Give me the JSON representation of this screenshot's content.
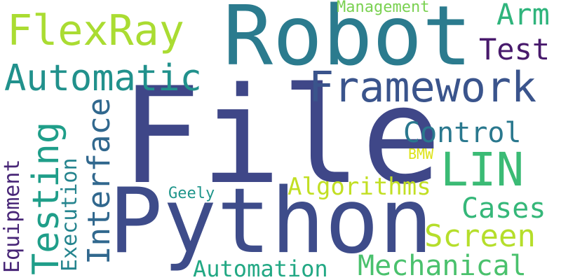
{
  "word_cloud": {
    "words": [
      {
        "id": "file",
        "text": "File",
        "color": "#3f4788"
      },
      {
        "id": "python",
        "text": "Python",
        "color": "#3e4c8a"
      },
      {
        "id": "robot",
        "text": "Robot",
        "color": "#2b7b8e"
      },
      {
        "id": "framework",
        "text": "Framework",
        "color": "#3a548c"
      },
      {
        "id": "flexray",
        "text": "FlexRay",
        "color": "#aadc32"
      },
      {
        "id": "automatic",
        "text": "Automatic",
        "color": "#21918c"
      },
      {
        "id": "lin",
        "text": "LIN",
        "color": "#3bbb75"
      },
      {
        "id": "testing",
        "text": "Testing",
        "color": "#1f9e89"
      },
      {
        "id": "interface",
        "text": "Interface",
        "color": "#31688e"
      },
      {
        "id": "control",
        "text": "Control",
        "color": "#2a788e"
      },
      {
        "id": "arm",
        "text": "Arm",
        "color": "#2fb47c"
      },
      {
        "id": "test",
        "text": "Test",
        "color": "#481a6c"
      },
      {
        "id": "management",
        "text": "Management",
        "color": "#7ad151"
      },
      {
        "id": "equipment",
        "text": "Equipment",
        "color": "#482677"
      },
      {
        "id": "execution",
        "text": "Execution",
        "color": "#25848e"
      },
      {
        "id": "algorithms",
        "text": "Algorithms",
        "color": "#c2df23"
      },
      {
        "id": "cases",
        "text": "Cases",
        "color": "#35b779"
      },
      {
        "id": "screen",
        "text": "Screen",
        "color": "#b5de2b"
      },
      {
        "id": "mechanical",
        "text": "Mechanical",
        "color": "#4ac16d"
      },
      {
        "id": "automation",
        "text": "Automation",
        "color": "#22a884"
      },
      {
        "id": "geely",
        "text": "Geely",
        "color": "#1f958b"
      },
      {
        "id": "bmw",
        "text": "BMW",
        "color": "#dde318"
      }
    ]
  }
}
